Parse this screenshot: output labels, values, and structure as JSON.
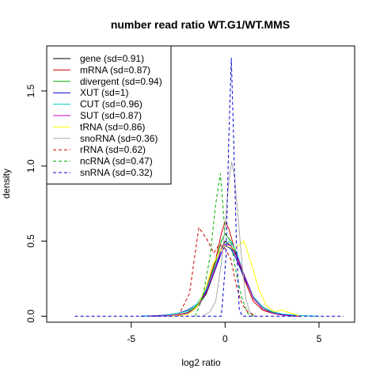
{
  "chart_data": {
    "type": "line",
    "title": "number read ratio WT.G1/WT.MMS",
    "xlabel": "log2 ratio",
    "ylabel": "density",
    "xlim": [
      -9.5,
      6.9
    ],
    "ylim": [
      -0.04,
      1.8
    ],
    "x_ticks": [
      -5,
      0,
      5
    ],
    "y_ticks": [
      0.0,
      0.5,
      1.0,
      1.5
    ],
    "x_tick_labels": [
      "-5",
      "0",
      "5"
    ],
    "y_tick_labels": [
      "0.0",
      "0.5",
      "1.0",
      "1.5"
    ],
    "legend_position": "top-left",
    "series": [
      {
        "name": "gene (sd=0.91)",
        "color": "#000000",
        "dash": "solid",
        "points": [
          [
            -4.0,
            0.0
          ],
          [
            -3.0,
            0.002
          ],
          [
            -2.5,
            0.01
          ],
          [
            -2.0,
            0.02
          ],
          [
            -1.5,
            0.06
          ],
          [
            -1.0,
            0.15
          ],
          [
            -0.5,
            0.32
          ],
          [
            -0.2,
            0.45
          ],
          [
            0.0,
            0.5
          ],
          [
            0.3,
            0.47
          ],
          [
            0.6,
            0.4
          ],
          [
            1.0,
            0.28
          ],
          [
            1.5,
            0.13
          ],
          [
            2.0,
            0.06
          ],
          [
            2.5,
            0.03
          ],
          [
            3.0,
            0.015
          ],
          [
            3.5,
            0.005
          ],
          [
            4.0,
            0.0
          ]
        ]
      },
      {
        "name": "mRNA (sd=0.87)",
        "color": "#cc0000",
        "dash": "solid",
        "points": [
          [
            -4.0,
            0.0
          ],
          [
            -3.0,
            0.003
          ],
          [
            -2.5,
            0.01
          ],
          [
            -2.0,
            0.025
          ],
          [
            -1.5,
            0.07
          ],
          [
            -1.0,
            0.18
          ],
          [
            -0.5,
            0.38
          ],
          [
            -0.2,
            0.55
          ],
          [
            0.0,
            0.63
          ],
          [
            0.2,
            0.58
          ],
          [
            0.5,
            0.45
          ],
          [
            1.0,
            0.25
          ],
          [
            1.5,
            0.1
          ],
          [
            2.0,
            0.04
          ],
          [
            2.5,
            0.02
          ],
          [
            3.0,
            0.008
          ],
          [
            3.5,
            0.002
          ],
          [
            4.0,
            0.0
          ]
        ]
      },
      {
        "name": "divergent (sd=0.94)",
        "color": "#00aa00",
        "dash": "solid",
        "points": [
          [
            -4.0,
            0.0
          ],
          [
            -3.0,
            0.003
          ],
          [
            -2.5,
            0.01
          ],
          [
            -2.0,
            0.025
          ],
          [
            -1.5,
            0.07
          ],
          [
            -1.0,
            0.17
          ],
          [
            -0.5,
            0.36
          ],
          [
            -0.2,
            0.5
          ],
          [
            0.0,
            0.55
          ],
          [
            0.3,
            0.5
          ],
          [
            0.6,
            0.42
          ],
          [
            1.0,
            0.27
          ],
          [
            1.5,
            0.12
          ],
          [
            2.0,
            0.05
          ],
          [
            2.5,
            0.025
          ],
          [
            3.0,
            0.01
          ],
          [
            3.5,
            0.003
          ],
          [
            4.0,
            0.0
          ]
        ]
      },
      {
        "name": "XUT (sd=1)",
        "color": "#0000cc",
        "dash": "solid",
        "points": [
          [
            -4.5,
            0.0
          ],
          [
            -3.5,
            0.005
          ],
          [
            -3.0,
            0.01
          ],
          [
            -2.5,
            0.02
          ],
          [
            -2.0,
            0.04
          ],
          [
            -1.5,
            0.08
          ],
          [
            -1.0,
            0.17
          ],
          [
            -0.5,
            0.32
          ],
          [
            -0.2,
            0.42
          ],
          [
            0.0,
            0.47
          ],
          [
            0.3,
            0.45
          ],
          [
            0.6,
            0.38
          ],
          [
            1.0,
            0.26
          ],
          [
            1.5,
            0.13
          ],
          [
            2.0,
            0.06
          ],
          [
            2.5,
            0.03
          ],
          [
            3.0,
            0.012
          ],
          [
            3.5,
            0.005
          ],
          [
            4.0,
            0.0
          ]
        ]
      },
      {
        "name": "CUT (sd=0.96)",
        "color": "#00cccc",
        "dash": "solid",
        "points": [
          [
            -4.5,
            0.0
          ],
          [
            -3.5,
            0.004
          ],
          [
            -3.0,
            0.01
          ],
          [
            -2.5,
            0.02
          ],
          [
            -2.0,
            0.035
          ],
          [
            -1.5,
            0.08
          ],
          [
            -1.0,
            0.18
          ],
          [
            -0.5,
            0.34
          ],
          [
            -0.2,
            0.45
          ],
          [
            0.0,
            0.48
          ],
          [
            0.3,
            0.5
          ],
          [
            0.6,
            0.43
          ],
          [
            1.0,
            0.28
          ],
          [
            1.5,
            0.13
          ],
          [
            2.0,
            0.06
          ],
          [
            2.5,
            0.03
          ],
          [
            3.0,
            0.015
          ],
          [
            4.0,
            0.005
          ],
          [
            5.0,
            0.0
          ]
        ]
      },
      {
        "name": "SUT (sd=0.87)",
        "color": "#cc00cc",
        "dash": "solid",
        "points": [
          [
            -4.0,
            0.0
          ],
          [
            -3.0,
            0.003
          ],
          [
            -2.5,
            0.01
          ],
          [
            -2.0,
            0.02
          ],
          [
            -1.5,
            0.06
          ],
          [
            -1.0,
            0.16
          ],
          [
            -0.5,
            0.33
          ],
          [
            -0.2,
            0.45
          ],
          [
            0.0,
            0.48
          ],
          [
            0.3,
            0.47
          ],
          [
            0.6,
            0.41
          ],
          [
            1.0,
            0.28
          ],
          [
            1.5,
            0.12
          ],
          [
            2.0,
            0.05
          ],
          [
            2.5,
            0.02
          ],
          [
            3.0,
            0.008
          ],
          [
            3.5,
            0.002
          ],
          [
            4.0,
            0.0
          ]
        ]
      },
      {
        "name": "tRNA (sd=0.86)",
        "color": "#ffff00",
        "dash": "solid",
        "points": [
          [
            -3.0,
            0.0
          ],
          [
            -2.0,
            0.01
          ],
          [
            -1.5,
            0.06
          ],
          [
            -1.0,
            0.2
          ],
          [
            -0.7,
            0.33
          ],
          [
            -0.3,
            0.43
          ],
          [
            0.0,
            0.47
          ],
          [
            0.5,
            0.45
          ],
          [
            1.0,
            0.5
          ],
          [
            1.4,
            0.35
          ],
          [
            1.8,
            0.18
          ],
          [
            2.2,
            0.07
          ],
          [
            2.6,
            0.03
          ],
          [
            3.0,
            0.04
          ],
          [
            3.5,
            0.02
          ],
          [
            4.0,
            0.0
          ]
        ]
      },
      {
        "name": "snoRNA (sd=0.36)",
        "color": "#aaaaaa",
        "dash": "solid",
        "points": [
          [
            -1.2,
            0.0
          ],
          [
            -0.8,
            0.03
          ],
          [
            -0.5,
            0.1
          ],
          [
            -0.2,
            0.35
          ],
          [
            0.0,
            0.6
          ],
          [
            0.2,
            0.9
          ],
          [
            0.35,
            1.03
          ],
          [
            0.5,
            0.93
          ],
          [
            0.7,
            0.65
          ],
          [
            0.9,
            0.35
          ],
          [
            1.1,
            0.12
          ],
          [
            1.3,
            0.03
          ],
          [
            1.6,
            0.0
          ]
        ]
      },
      {
        "name": "rRNA (sd=0.62)",
        "color": "#cc0000",
        "dash": "dashed",
        "points": [
          [
            -2.5,
            0.0
          ],
          [
            -1.9,
            0.15
          ],
          [
            -1.4,
            0.59
          ],
          [
            -1.0,
            0.52
          ],
          [
            -0.6,
            0.42
          ],
          [
            -0.3,
            0.48
          ],
          [
            0.0,
            0.45
          ],
          [
            0.3,
            0.38
          ],
          [
            0.6,
            0.2
          ],
          [
            0.9,
            0.08
          ],
          [
            1.2,
            0.03
          ],
          [
            1.6,
            0.0
          ]
        ]
      },
      {
        "name": "ncRNA (sd=0.47)",
        "color": "#00aa00",
        "dash": "dashed",
        "points": [
          [
            -1.6,
            0.0
          ],
          [
            -1.2,
            0.12
          ],
          [
            -0.8,
            0.4
          ],
          [
            -0.5,
            0.75
          ],
          [
            -0.25,
            0.95
          ],
          [
            0.0,
            0.55
          ],
          [
            0.3,
            0.5
          ],
          [
            0.6,
            0.28
          ],
          [
            0.9,
            0.12
          ],
          [
            1.2,
            0.02
          ],
          [
            1.5,
            0.0
          ]
        ]
      },
      {
        "name": "snRNA (sd=0.32)",
        "color": "#0000cc",
        "dash": "dashed",
        "points": [
          [
            -8.0,
            0.0
          ],
          [
            -0.2,
            0.0
          ],
          [
            0.05,
            0.4
          ],
          [
            0.2,
            1.2
          ],
          [
            0.33,
            1.72
          ],
          [
            0.45,
            1.2
          ],
          [
            0.6,
            0.5
          ],
          [
            0.75,
            0.05
          ],
          [
            0.9,
            0.0
          ],
          [
            6.3,
            0.0
          ]
        ]
      }
    ]
  }
}
